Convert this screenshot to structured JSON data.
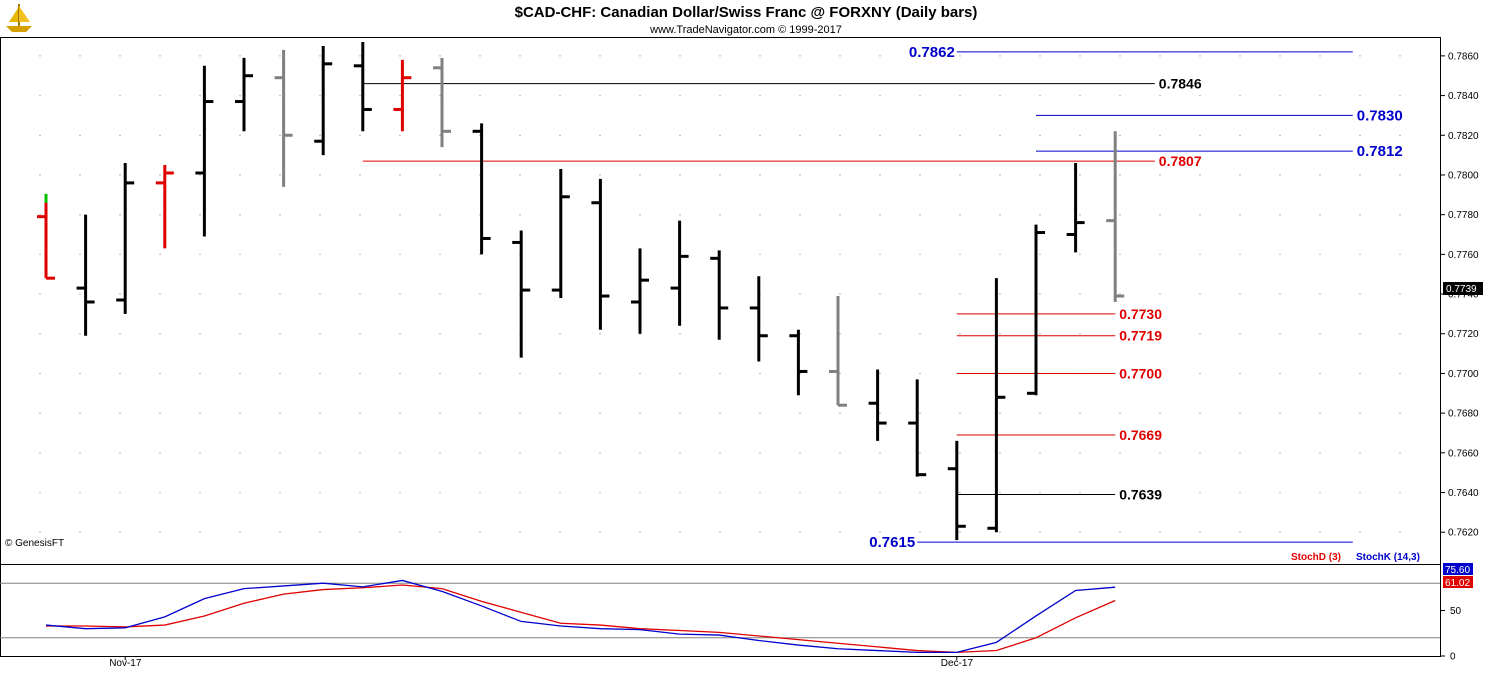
{
  "header": {
    "title": "$CAD-CHF:  Canadian Dollar/Swiss Franc @ FORXNY  (Daily bars)",
    "subtitle": "www.TradeNavigator.com © 1999-2017"
  },
  "copyright": "© GenesisFT",
  "logo_icon": "sailing-ship-icon",
  "colors": {
    "up_bar": "#000000",
    "down_bar": "#808080",
    "highlight_bar": "#e00000",
    "green_tick": "#00c000",
    "red_level": "#e00000",
    "blue_level": "#0000cc",
    "black_level": "#000000",
    "stochD": "#e00000",
    "stochK": "#0000cc",
    "grid_dot": "#b0b0b0"
  },
  "chart_data": [
    {
      "type": "ohlc",
      "title": "$CAD-CHF:  Canadian Dollar/Swiss Franc @ FORXNY  (Daily bars)",
      "ylim": [
        0.7605,
        0.7868
      ],
      "y_ticks": [
        "0.7620",
        "0.7640",
        "0.7660",
        "0.7680",
        "0.7700",
        "0.7720",
        "0.7740",
        "0.7760",
        "0.7780",
        "0.7800",
        "0.7820",
        "0.7840",
        "0.7860"
      ],
      "x_labels": [
        {
          "label": "Nov-17",
          "bar": 2
        },
        {
          "label": "Dec-17",
          "bar": 23
        }
      ],
      "last_price": "0.7739",
      "bars": [
        {
          "o": 0.7779,
          "h": 0.779,
          "l": 0.7748,
          "c": 0.7748,
          "color": "red"
        },
        {
          "o": 0.7743,
          "h": 0.778,
          "l": 0.7719,
          "c": 0.7736,
          "color": "black"
        },
        {
          "o": 0.7737,
          "h": 0.7806,
          "l": 0.773,
          "c": 0.7796,
          "color": "black"
        },
        {
          "o": 0.7796,
          "h": 0.7805,
          "l": 0.7763,
          "c": 0.7801,
          "color": "red"
        },
        {
          "o": 0.7801,
          "h": 0.7855,
          "l": 0.7769,
          "c": 0.7837,
          "color": "black"
        },
        {
          "o": 0.7837,
          "h": 0.7859,
          "l": 0.7822,
          "c": 0.785,
          "color": "black"
        },
        {
          "o": 0.7849,
          "h": 0.7863,
          "l": 0.7794,
          "c": 0.782,
          "color": "grey"
        },
        {
          "o": 0.7817,
          "h": 0.7865,
          "l": 0.781,
          "c": 0.7856,
          "color": "black"
        },
        {
          "o": 0.7855,
          "h": 0.7867,
          "l": 0.7822,
          "c": 0.7833,
          "color": "black"
        },
        {
          "o": 0.7833,
          "h": 0.7858,
          "l": 0.7822,
          "c": 0.7849,
          "color": "red"
        },
        {
          "o": 0.7854,
          "h": 0.7859,
          "l": 0.7814,
          "c": 0.7822,
          "color": "grey"
        },
        {
          "o": 0.7822,
          "h": 0.7826,
          "l": 0.776,
          "c": 0.7768,
          "color": "black"
        },
        {
          "o": 0.7766,
          "h": 0.7772,
          "l": 0.7708,
          "c": 0.7742,
          "color": "black"
        },
        {
          "o": 0.7742,
          "h": 0.7803,
          "l": 0.7738,
          "c": 0.7789,
          "color": "black"
        },
        {
          "o": 0.7786,
          "h": 0.7798,
          "l": 0.7722,
          "c": 0.7739,
          "color": "black"
        },
        {
          "o": 0.7736,
          "h": 0.7763,
          "l": 0.772,
          "c": 0.7747,
          "color": "black"
        },
        {
          "o": 0.7743,
          "h": 0.7777,
          "l": 0.7724,
          "c": 0.7759,
          "color": "black"
        },
        {
          "o": 0.7758,
          "h": 0.7762,
          "l": 0.7717,
          "c": 0.7733,
          "color": "black"
        },
        {
          "o": 0.7733,
          "h": 0.7749,
          "l": 0.7706,
          "c": 0.7719,
          "color": "black"
        },
        {
          "o": 0.7719,
          "h": 0.7722,
          "l": 0.7689,
          "c": 0.7701,
          "color": "black"
        },
        {
          "o": 0.7701,
          "h": 0.7739,
          "l": 0.7684,
          "c": 0.7684,
          "color": "grey"
        },
        {
          "o": 0.7685,
          "h": 0.7702,
          "l": 0.7666,
          "c": 0.7675,
          "color": "black"
        },
        {
          "o": 0.7675,
          "h": 0.7697,
          "l": 0.7648,
          "c": 0.7649,
          "color": "black"
        },
        {
          "o": 0.7652,
          "h": 0.7666,
          "l": 0.7616,
          "c": 0.7623,
          "color": "black"
        },
        {
          "o": 0.7622,
          "h": 0.7748,
          "l": 0.762,
          "c": 0.7688,
          "color": "black"
        },
        {
          "o": 0.769,
          "h": 0.7775,
          "l": 0.7689,
          "c": 0.7771,
          "color": "black"
        },
        {
          "o": 0.777,
          "h": 0.7806,
          "l": 0.7761,
          "c": 0.7776,
          "color": "black"
        },
        {
          "o": 0.7777,
          "h": 0.7822,
          "l": 0.7736,
          "c": 0.7739,
          "color": "grey"
        }
      ],
      "levels": [
        {
          "value": 0.7862,
          "label": "0.7862",
          "color": "blue",
          "from_bar": 23,
          "to_bar": 33,
          "label_side": "left"
        },
        {
          "value": 0.7846,
          "label": "0.7846",
          "color": "black",
          "from_bar": 8,
          "to_bar": 28,
          "label_side": "right"
        },
        {
          "value": 0.783,
          "label": "0.7830",
          "color": "blue",
          "from_bar": 25,
          "to_bar": 33,
          "label_side": "right"
        },
        {
          "value": 0.7812,
          "label": "0.7812",
          "color": "blue",
          "from_bar": 25,
          "to_bar": 33,
          "label_side": "right"
        },
        {
          "value": 0.7807,
          "label": "0.7807",
          "color": "red",
          "from_bar": 8,
          "to_bar": 28,
          "label_side": "right"
        },
        {
          "value": 0.773,
          "label": "0.7730",
          "color": "red",
          "from_bar": 23,
          "to_bar": 27,
          "label_side": "right"
        },
        {
          "value": 0.7719,
          "label": "0.7719",
          "color": "red",
          "from_bar": 23,
          "to_bar": 27,
          "label_side": "right"
        },
        {
          "value": 0.77,
          "label": "0.7700",
          "color": "red",
          "from_bar": 23,
          "to_bar": 27,
          "label_side": "right"
        },
        {
          "value": 0.7669,
          "label": "0.7669",
          "color": "red",
          "from_bar": 23,
          "to_bar": 27,
          "label_side": "right"
        },
        {
          "value": 0.7639,
          "label": "0.7639",
          "color": "black",
          "from_bar": 23,
          "to_bar": 27,
          "label_side": "right"
        },
        {
          "value": 0.7615,
          "label": "0.7615",
          "color": "blue",
          "from_bar": 22,
          "to_bar": 33,
          "label_side": "left"
        }
      ]
    },
    {
      "type": "line",
      "title": "",
      "ylim": [
        0,
        100
      ],
      "y_ticks": [
        "0",
        "50"
      ],
      "hlines": [
        80,
        20
      ],
      "series": [
        {
          "name": "StochD (3)",
          "color": "red",
          "values": [
            33,
            33,
            32,
            34,
            44,
            58,
            68,
            73,
            75,
            78,
            74,
            60,
            48,
            36,
            34,
            30,
            28,
            26,
            22,
            18,
            14,
            10,
            6,
            4,
            6,
            20,
            42,
            61.02
          ]
        },
        {
          "name": "StochK (14,3)",
          "color": "blue",
          "values": [
            34,
            30,
            31,
            43,
            63,
            74,
            77,
            80,
            76,
            83,
            71,
            55,
            38,
            33,
            30,
            29,
            24,
            23,
            17,
            12,
            8,
            6,
            4,
            4,
            15,
            44,
            72,
            75.6
          ]
        }
      ],
      "last_values": [
        "75.60",
        "61.02"
      ]
    }
  ]
}
